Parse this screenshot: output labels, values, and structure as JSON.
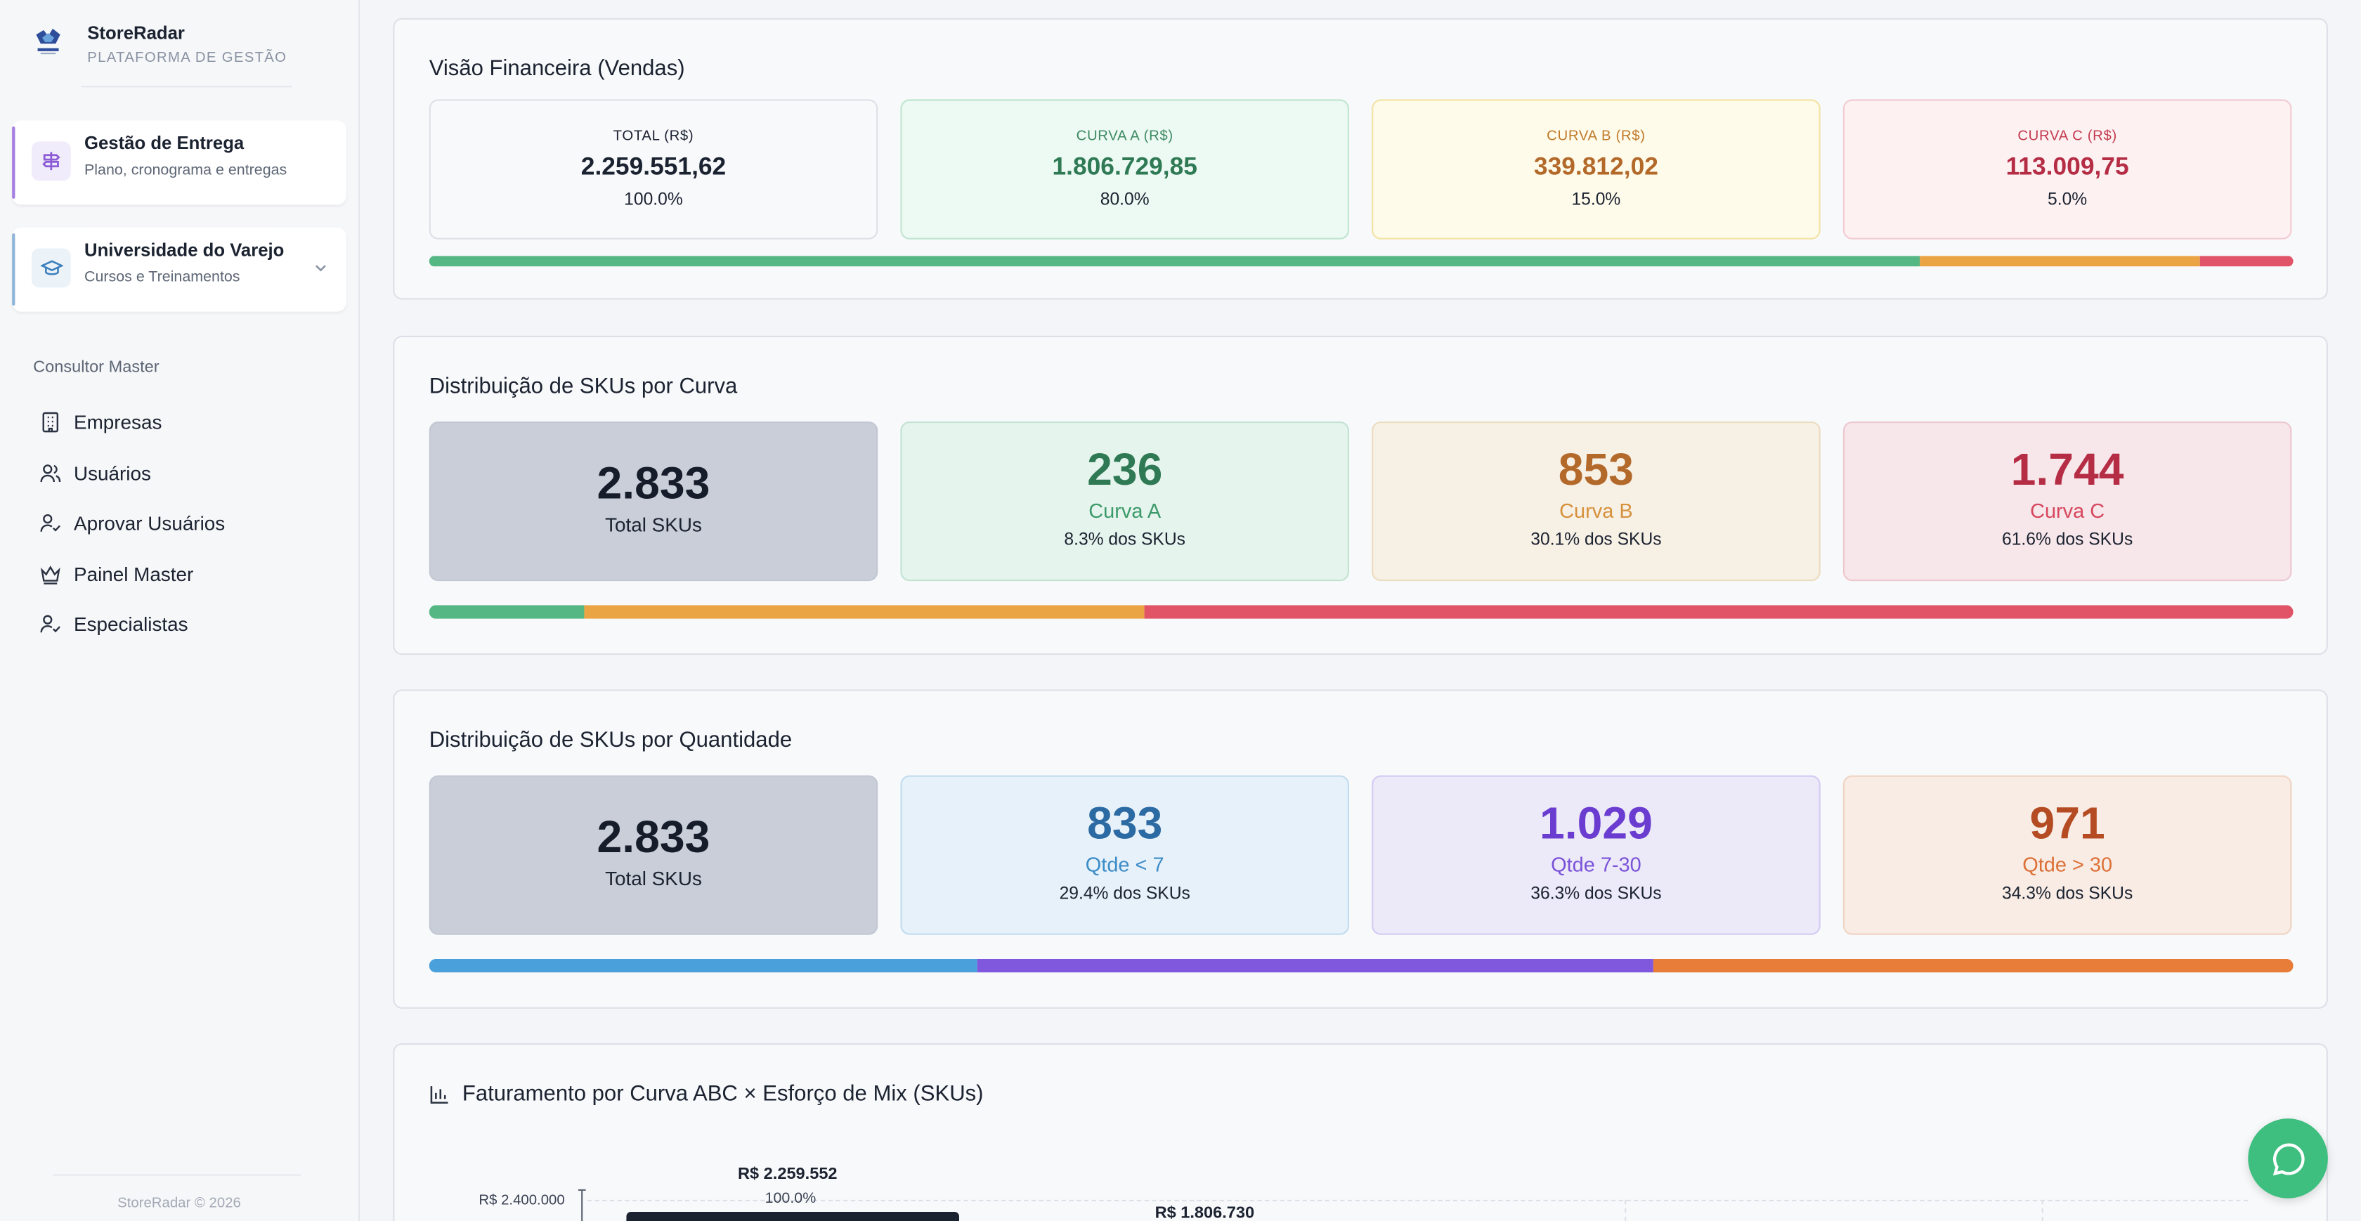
{
  "brand": {
    "name": "StoreRadar",
    "subtitle": "PLATAFORMA DE GESTÃO"
  },
  "sidebar": {
    "cards": [
      {
        "title": "Gestão de Entrega",
        "subtitle": "Plano, cronograma e entregas",
        "icon": "signpost-icon",
        "accent": "#a77fe0"
      },
      {
        "title": "Universidade do Varejo",
        "subtitle": "Cursos e Treinamentos",
        "icon": "graduation-cap-icon",
        "accent": "#8fb6d8"
      }
    ],
    "section_label": "Consultor Master",
    "menu": [
      {
        "label": "Empresas",
        "icon": "building-icon"
      },
      {
        "label": "Usuários",
        "icon": "users-icon"
      },
      {
        "label": "Aprovar Usuários",
        "icon": "user-check-icon"
      },
      {
        "label": "Painel Master",
        "icon": "crown-icon"
      },
      {
        "label": "Especialistas",
        "icon": "user-check-icon"
      }
    ],
    "footer": "StoreRadar © 2026"
  },
  "financeiro": {
    "title": "Visão Financeira (Vendas)",
    "tiles": [
      {
        "label": "TOTAL (R$)",
        "value": "2.259.551,62",
        "pct": "100.0%"
      },
      {
        "label": "CURVA A (R$)",
        "value": "1.806.729,85",
        "pct": "80.0%"
      },
      {
        "label": "CURVA B (R$)",
        "value": "339.812,02",
        "pct": "15.0%"
      },
      {
        "label": "CURVA C (R$)",
        "value": "113.009,75",
        "pct": "5.0%"
      }
    ],
    "bar": [
      {
        "share": 80.0,
        "color": "#55b784"
      },
      {
        "share": 15.0,
        "color": "#eba444"
      },
      {
        "share": 5.0,
        "color": "#e15467"
      }
    ]
  },
  "curva": {
    "title": "Distribuição de SKUs por Curva",
    "total": {
      "value": "2.833",
      "label": "Total SKUs"
    },
    "tiles": [
      {
        "value": "236",
        "label": "Curva A",
        "sub": "8.3% dos SKUs"
      },
      {
        "value": "853",
        "label": "Curva B",
        "sub": "30.1% dos SKUs"
      },
      {
        "value": "1.744",
        "label": "Curva C",
        "sub": "61.6% dos SKUs"
      }
    ],
    "bar": [
      {
        "share": 8.3,
        "color": "#55b784"
      },
      {
        "share": 30.1,
        "color": "#eba444"
      },
      {
        "share": 61.6,
        "color": "#e15467"
      }
    ]
  },
  "quantidade": {
    "title": "Distribuição de SKUs por Quantidade",
    "total": {
      "value": "2.833",
      "label": "Total SKUs"
    },
    "tiles": [
      {
        "value": "833",
        "label": "Qtde < 7",
        "sub": "29.4% dos SKUs"
      },
      {
        "value": "1.029",
        "label": "Qtde 7-30",
        "sub": "36.3% dos SKUs"
      },
      {
        "value": "971",
        "label": "Qtde > 30",
        "sub": "34.3% dos SKUs"
      }
    ],
    "bar": [
      {
        "share": 29.4,
        "color": "#4aa0da"
      },
      {
        "share": 36.3,
        "color": "#8058dd"
      },
      {
        "share": 34.3,
        "color": "#e87c39"
      }
    ]
  },
  "faturamento": {
    "title": "Faturamento por Curva ABC × Esforço de Mix (SKUs)",
    "y_tick": "R$ 2.400.000",
    "label_total": "R$ 2.259.552",
    "label_total_pct": "100.0%",
    "label_a": "R$ 1.806.730"
  }
}
